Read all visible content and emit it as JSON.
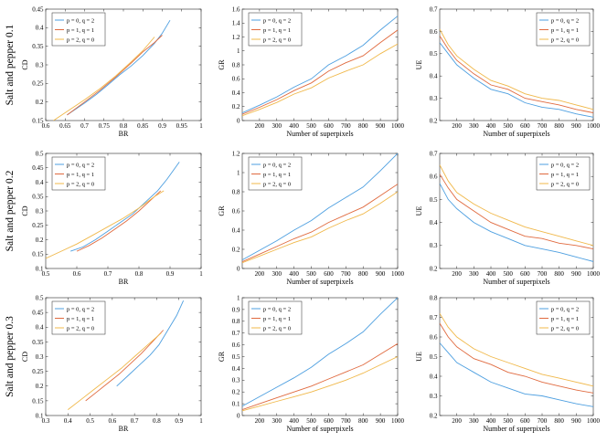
{
  "colors": {
    "series_1": "#4d9fe0",
    "series_2": "#e06a3f",
    "series_3": "#f0b84a"
  },
  "rows": [
    "Salt and pepper 0.1",
    "Salt and pepper 0.2",
    "Salt and pepper 0.3"
  ],
  "chart_data": [
    {
      "type": "line",
      "xlabel": "BR",
      "ylabel": "CD",
      "xlim": [
        0.6,
        1
      ],
      "ylim": [
        0.15,
        0.45
      ],
      "xticks": [
        0.6,
        0.65,
        0.7,
        0.75,
        0.8,
        0.85,
        0.9,
        0.95,
        1
      ],
      "yticks": [
        0.15,
        0.2,
        0.25,
        0.3,
        0.35,
        0.4,
        0.45
      ],
      "legend": "top-left",
      "series": [
        {
          "name": "p = 0, q = 2",
          "x": [
            0.655,
            0.7,
            0.73,
            0.76,
            0.79,
            0.82,
            0.85,
            0.88,
            0.9,
            0.92
          ],
          "y": [
            0.165,
            0.197,
            0.22,
            0.246,
            0.273,
            0.297,
            0.325,
            0.358,
            0.385,
            0.42
          ]
        },
        {
          "name": "p = 1, q = 1",
          "x": [
            0.655,
            0.7,
            0.74,
            0.78,
            0.82,
            0.85,
            0.88,
            0.9
          ],
          "y": [
            0.165,
            0.2,
            0.232,
            0.267,
            0.305,
            0.335,
            0.36,
            0.38
          ]
        },
        {
          "name": "p = 2, q = 0",
          "x": [
            0.62,
            0.66,
            0.7,
            0.74,
            0.78,
            0.82,
            0.85,
            0.88
          ],
          "y": [
            0.15,
            0.178,
            0.206,
            0.236,
            0.27,
            0.308,
            0.338,
            0.375
          ]
        }
      ]
    },
    {
      "type": "line",
      "xlabel": "Number of superpixels",
      "ylabel": "GR",
      "xlim": [
        100,
        1000
      ],
      "ylim": [
        0,
        1.6
      ],
      "xticks": [
        200,
        300,
        400,
        500,
        600,
        700,
        800,
        900,
        1000
      ],
      "yticks": [
        0,
        0.2,
        0.4,
        0.6,
        0.8,
        1,
        1.2,
        1.4,
        1.6
      ],
      "legend": "top-left",
      "series": [
        {
          "name": "p = 0, q = 2",
          "x": [
            100,
            200,
            300,
            400,
            500,
            600,
            700,
            800,
            900,
            1000
          ],
          "y": [
            0.11,
            0.22,
            0.34,
            0.48,
            0.6,
            0.8,
            0.93,
            1.08,
            1.3,
            1.5
          ]
        },
        {
          "name": "p = 1, q = 1",
          "x": [
            100,
            200,
            300,
            400,
            500,
            600,
            700,
            800,
            900,
            1000
          ],
          "y": [
            0.09,
            0.19,
            0.3,
            0.43,
            0.54,
            0.71,
            0.83,
            0.93,
            1.12,
            1.3
          ]
        },
        {
          "name": "p = 2, q = 0",
          "x": [
            100,
            200,
            300,
            400,
            500,
            600,
            700,
            800,
            900,
            1000
          ],
          "y": [
            0.07,
            0.16,
            0.26,
            0.38,
            0.47,
            0.61,
            0.71,
            0.8,
            0.96,
            1.1
          ]
        }
      ]
    },
    {
      "type": "line",
      "xlabel": "Number of superpixels",
      "ylabel": "UE",
      "xlim": [
        100,
        1000
      ],
      "ylim": [
        0.2,
        0.7
      ],
      "xticks": [
        200,
        300,
        400,
        500,
        600,
        700,
        800,
        900,
        1000
      ],
      "yticks": [
        0.2,
        0.3,
        0.4,
        0.5,
        0.6,
        0.7
      ],
      "legend": "top-right",
      "series": [
        {
          "name": "p = 0, q = 2",
          "x": [
            100,
            150,
            200,
            300,
            400,
            500,
            600,
            700,
            800,
            900,
            1000
          ],
          "y": [
            0.55,
            0.5,
            0.45,
            0.39,
            0.34,
            0.32,
            0.28,
            0.26,
            0.25,
            0.23,
            0.215
          ]
        },
        {
          "name": "p = 1, q = 1",
          "x": [
            100,
            150,
            200,
            300,
            400,
            500,
            600,
            700,
            800,
            900,
            1000
          ],
          "y": [
            0.58,
            0.52,
            0.47,
            0.41,
            0.36,
            0.34,
            0.3,
            0.285,
            0.27,
            0.25,
            0.235
          ]
        },
        {
          "name": "p = 2, q = 0",
          "x": [
            100,
            150,
            200,
            300,
            400,
            500,
            600,
            700,
            800,
            900,
            1000
          ],
          "y": [
            0.61,
            0.54,
            0.49,
            0.43,
            0.38,
            0.355,
            0.32,
            0.3,
            0.29,
            0.27,
            0.25
          ]
        }
      ]
    },
    {
      "type": "line",
      "xlabel": "BR",
      "ylabel": "CD",
      "xlim": [
        0.5,
        1
      ],
      "ylim": [
        0.1,
        0.5
      ],
      "xticks": [
        0.5,
        0.6,
        0.7,
        0.8,
        0.9,
        1
      ],
      "yticks": [
        0.1,
        0.15,
        0.2,
        0.25,
        0.3,
        0.35,
        0.4,
        0.45,
        0.5
      ],
      "legend": "top-left",
      "series": [
        {
          "name": "p = 0, q = 2",
          "x": [
            0.58,
            0.62,
            0.66,
            0.7,
            0.74,
            0.78,
            0.82,
            0.86,
            0.89,
            0.93
          ],
          "y": [
            0.16,
            0.175,
            0.2,
            0.23,
            0.26,
            0.29,
            0.33,
            0.37,
            0.41,
            0.47
          ]
        },
        {
          "name": "p = 1, q = 1",
          "x": [
            0.6,
            0.64,
            0.68,
            0.72,
            0.76,
            0.8,
            0.84,
            0.87
          ],
          "y": [
            0.16,
            0.18,
            0.205,
            0.235,
            0.265,
            0.3,
            0.34,
            0.37
          ]
        },
        {
          "name": "p = 2, q = 0",
          "x": [
            0.5,
            0.55,
            0.6,
            0.65,
            0.7,
            0.75,
            0.8,
            0.85,
            0.88
          ],
          "y": [
            0.135,
            0.16,
            0.185,
            0.215,
            0.245,
            0.275,
            0.31,
            0.35,
            0.37
          ]
        }
      ]
    },
    {
      "type": "line",
      "xlabel": "Number of superpixels",
      "ylabel": "GR",
      "xlim": [
        100,
        1000
      ],
      "ylim": [
        0,
        1.2
      ],
      "xticks": [
        200,
        300,
        400,
        500,
        600,
        700,
        800,
        900,
        1000
      ],
      "yticks": [
        0,
        0.2,
        0.4,
        0.6,
        0.8,
        1,
        1.2
      ],
      "legend": "top-left",
      "series": [
        {
          "name": "p = 0, q = 2",
          "x": [
            100,
            200,
            300,
            400,
            500,
            600,
            700,
            800,
            900,
            1000
          ],
          "y": [
            0.09,
            0.19,
            0.29,
            0.4,
            0.5,
            0.63,
            0.74,
            0.85,
            1.02,
            1.2
          ]
        },
        {
          "name": "p = 1, q = 1",
          "x": [
            100,
            200,
            300,
            400,
            500,
            600,
            700,
            800,
            900,
            1000
          ],
          "y": [
            0.07,
            0.15,
            0.23,
            0.31,
            0.38,
            0.48,
            0.56,
            0.64,
            0.76,
            0.88
          ]
        },
        {
          "name": "p = 2, q = 0",
          "x": [
            100,
            200,
            300,
            400,
            500,
            600,
            700,
            800,
            900,
            1000
          ],
          "y": [
            0.06,
            0.13,
            0.2,
            0.27,
            0.33,
            0.42,
            0.5,
            0.57,
            0.68,
            0.8
          ]
        }
      ]
    },
    {
      "type": "line",
      "xlabel": "Number of superpixels",
      "ylabel": "UE",
      "xlim": [
        100,
        1000
      ],
      "ylim": [
        0.2,
        0.7
      ],
      "xticks": [
        200,
        300,
        400,
        500,
        600,
        700,
        800,
        900,
        1000
      ],
      "yticks": [
        0.2,
        0.3,
        0.4,
        0.5,
        0.6,
        0.7
      ],
      "legend": "top-right",
      "series": [
        {
          "name": "p = 0, q = 2",
          "x": [
            100,
            150,
            200,
            300,
            400,
            500,
            600,
            700,
            800,
            900,
            1000
          ],
          "y": [
            0.57,
            0.5,
            0.46,
            0.4,
            0.36,
            0.33,
            0.3,
            0.285,
            0.27,
            0.25,
            0.23
          ]
        },
        {
          "name": "p = 1, q = 1",
          "x": [
            100,
            150,
            200,
            300,
            400,
            500,
            600,
            700,
            800,
            900,
            1000
          ],
          "y": [
            0.61,
            0.55,
            0.5,
            0.45,
            0.4,
            0.37,
            0.34,
            0.33,
            0.31,
            0.3,
            0.285
          ]
        },
        {
          "name": "p = 2, q = 0",
          "x": [
            100,
            150,
            200,
            300,
            400,
            500,
            600,
            700,
            800,
            900,
            1000
          ],
          "y": [
            0.65,
            0.58,
            0.53,
            0.48,
            0.44,
            0.41,
            0.38,
            0.36,
            0.34,
            0.32,
            0.3
          ]
        }
      ]
    },
    {
      "type": "line",
      "xlabel": "BR",
      "ylabel": "CD",
      "xlim": [
        0.3,
        1
      ],
      "ylim": [
        0.1,
        0.5
      ],
      "xticks": [
        0.3,
        0.4,
        0.5,
        0.6,
        0.7,
        0.8,
        0.9,
        1
      ],
      "yticks": [
        0.1,
        0.15,
        0.2,
        0.25,
        0.3,
        0.35,
        0.4,
        0.45,
        0.5
      ],
      "legend": "top-left",
      "series": [
        {
          "name": "p = 0, q = 2",
          "x": [
            0.62,
            0.67,
            0.72,
            0.77,
            0.81,
            0.85,
            0.89,
            0.92
          ],
          "y": [
            0.2,
            0.235,
            0.27,
            0.305,
            0.34,
            0.39,
            0.44,
            0.49
          ]
        },
        {
          "name": "p = 1, q = 1",
          "x": [
            0.48,
            0.53,
            0.58,
            0.63,
            0.68,
            0.73,
            0.78,
            0.83
          ],
          "y": [
            0.15,
            0.18,
            0.21,
            0.24,
            0.275,
            0.31,
            0.35,
            0.39
          ]
        },
        {
          "name": "p = 2, q = 0",
          "x": [
            0.4,
            0.46,
            0.52,
            0.58,
            0.64,
            0.7,
            0.76,
            0.82
          ],
          "y": [
            0.12,
            0.155,
            0.19,
            0.225,
            0.26,
            0.3,
            0.34,
            0.38
          ]
        }
      ]
    },
    {
      "type": "line",
      "xlabel": "Number of superpixels",
      "ylabel": "GR",
      "xlim": [
        100,
        1000
      ],
      "ylim": [
        0,
        1
      ],
      "xticks": [
        200,
        300,
        400,
        500,
        600,
        700,
        800,
        900,
        1000
      ],
      "yticks": [
        0,
        0.1,
        0.2,
        0.3,
        0.4,
        0.5,
        0.6,
        0.7,
        0.8,
        0.9,
        1
      ],
      "legend": "top-left",
      "series": [
        {
          "name": "p = 0, q = 2",
          "x": [
            100,
            200,
            300,
            400,
            500,
            600,
            700,
            800,
            900,
            1000
          ],
          "y": [
            0.08,
            0.16,
            0.24,
            0.32,
            0.41,
            0.52,
            0.61,
            0.71,
            0.86,
            1.0
          ]
        },
        {
          "name": "p = 1, q = 1",
          "x": [
            100,
            200,
            300,
            400,
            500,
            600,
            700,
            800,
            900,
            1000
          ],
          "y": [
            0.05,
            0.1,
            0.15,
            0.2,
            0.25,
            0.31,
            0.37,
            0.43,
            0.52,
            0.61
          ]
        },
        {
          "name": "p = 2, q = 0",
          "x": [
            100,
            200,
            300,
            400,
            500,
            600,
            700,
            800,
            900,
            1000
          ],
          "y": [
            0.04,
            0.08,
            0.12,
            0.16,
            0.2,
            0.25,
            0.3,
            0.36,
            0.43,
            0.5
          ]
        }
      ]
    },
    {
      "type": "line",
      "xlabel": "Number of superpixels",
      "ylabel": "UE",
      "xlim": [
        100,
        1000
      ],
      "ylim": [
        0.2,
        0.8
      ],
      "xticks": [
        200,
        300,
        400,
        500,
        600,
        700,
        800,
        900,
        1000
      ],
      "yticks": [
        0.2,
        0.3,
        0.4,
        0.5,
        0.6,
        0.7,
        0.8
      ],
      "legend": "top-right",
      "series": [
        {
          "name": "p = 0, q = 2",
          "x": [
            100,
            150,
            200,
            300,
            400,
            500,
            600,
            700,
            800,
            900,
            1000
          ],
          "y": [
            0.57,
            0.52,
            0.47,
            0.42,
            0.37,
            0.34,
            0.31,
            0.3,
            0.28,
            0.26,
            0.245
          ]
        },
        {
          "name": "p = 1, q = 1",
          "x": [
            100,
            150,
            200,
            300,
            400,
            500,
            600,
            700,
            800,
            900,
            1000
          ],
          "y": [
            0.67,
            0.6,
            0.55,
            0.49,
            0.46,
            0.42,
            0.4,
            0.37,
            0.35,
            0.33,
            0.315
          ]
        },
        {
          "name": "p = 2, q = 0",
          "x": [
            100,
            150,
            200,
            300,
            400,
            500,
            600,
            700,
            800,
            900,
            1000
          ],
          "y": [
            0.72,
            0.65,
            0.6,
            0.54,
            0.5,
            0.47,
            0.44,
            0.41,
            0.39,
            0.37,
            0.35
          ]
        }
      ]
    }
  ]
}
